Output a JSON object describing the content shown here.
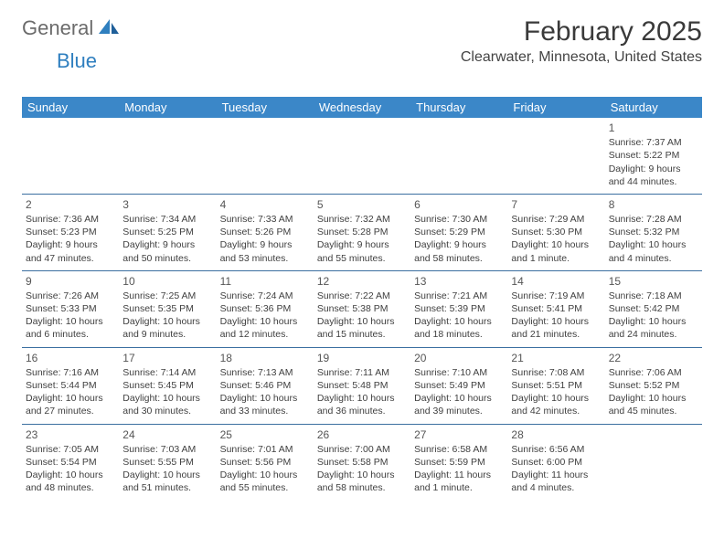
{
  "brand": {
    "text1": "General",
    "text2": "Blue"
  },
  "title": "February 2025",
  "location": "Clearwater, Minnesota, United States",
  "colors": {
    "header_bg": "#3b87c8",
    "header_text": "#ffffff",
    "row_border": "#3b6fa0",
    "brand_gray": "#6b6b6b",
    "brand_blue": "#2f7fbf"
  },
  "dayHeaders": [
    "Sunday",
    "Monday",
    "Tuesday",
    "Wednesday",
    "Thursday",
    "Friday",
    "Saturday"
  ],
  "weeks": [
    [
      null,
      null,
      null,
      null,
      null,
      null,
      {
        "n": "1",
        "sr": "7:37 AM",
        "ss": "5:22 PM",
        "dl": "9 hours and 44 minutes."
      }
    ],
    [
      {
        "n": "2",
        "sr": "7:36 AM",
        "ss": "5:23 PM",
        "dl": "9 hours and 47 minutes."
      },
      {
        "n": "3",
        "sr": "7:34 AM",
        "ss": "5:25 PM",
        "dl": "9 hours and 50 minutes."
      },
      {
        "n": "4",
        "sr": "7:33 AM",
        "ss": "5:26 PM",
        "dl": "9 hours and 53 minutes."
      },
      {
        "n": "5",
        "sr": "7:32 AM",
        "ss": "5:28 PM",
        "dl": "9 hours and 55 minutes."
      },
      {
        "n": "6",
        "sr": "7:30 AM",
        "ss": "5:29 PM",
        "dl": "9 hours and 58 minutes."
      },
      {
        "n": "7",
        "sr": "7:29 AM",
        "ss": "5:30 PM",
        "dl": "10 hours and 1 minute."
      },
      {
        "n": "8",
        "sr": "7:28 AM",
        "ss": "5:32 PM",
        "dl": "10 hours and 4 minutes."
      }
    ],
    [
      {
        "n": "9",
        "sr": "7:26 AM",
        "ss": "5:33 PM",
        "dl": "10 hours and 6 minutes."
      },
      {
        "n": "10",
        "sr": "7:25 AM",
        "ss": "5:35 PM",
        "dl": "10 hours and 9 minutes."
      },
      {
        "n": "11",
        "sr": "7:24 AM",
        "ss": "5:36 PM",
        "dl": "10 hours and 12 minutes."
      },
      {
        "n": "12",
        "sr": "7:22 AM",
        "ss": "5:38 PM",
        "dl": "10 hours and 15 minutes."
      },
      {
        "n": "13",
        "sr": "7:21 AM",
        "ss": "5:39 PM",
        "dl": "10 hours and 18 minutes."
      },
      {
        "n": "14",
        "sr": "7:19 AM",
        "ss": "5:41 PM",
        "dl": "10 hours and 21 minutes."
      },
      {
        "n": "15",
        "sr": "7:18 AM",
        "ss": "5:42 PM",
        "dl": "10 hours and 24 minutes."
      }
    ],
    [
      {
        "n": "16",
        "sr": "7:16 AM",
        "ss": "5:44 PM",
        "dl": "10 hours and 27 minutes."
      },
      {
        "n": "17",
        "sr": "7:14 AM",
        "ss": "5:45 PM",
        "dl": "10 hours and 30 minutes."
      },
      {
        "n": "18",
        "sr": "7:13 AM",
        "ss": "5:46 PM",
        "dl": "10 hours and 33 minutes."
      },
      {
        "n": "19",
        "sr": "7:11 AM",
        "ss": "5:48 PM",
        "dl": "10 hours and 36 minutes."
      },
      {
        "n": "20",
        "sr": "7:10 AM",
        "ss": "5:49 PM",
        "dl": "10 hours and 39 minutes."
      },
      {
        "n": "21",
        "sr": "7:08 AM",
        "ss": "5:51 PM",
        "dl": "10 hours and 42 minutes."
      },
      {
        "n": "22",
        "sr": "7:06 AM",
        "ss": "5:52 PM",
        "dl": "10 hours and 45 minutes."
      }
    ],
    [
      {
        "n": "23",
        "sr": "7:05 AM",
        "ss": "5:54 PM",
        "dl": "10 hours and 48 minutes."
      },
      {
        "n": "24",
        "sr": "7:03 AM",
        "ss": "5:55 PM",
        "dl": "10 hours and 51 minutes."
      },
      {
        "n": "25",
        "sr": "7:01 AM",
        "ss": "5:56 PM",
        "dl": "10 hours and 55 minutes."
      },
      {
        "n": "26",
        "sr": "7:00 AM",
        "ss": "5:58 PM",
        "dl": "10 hours and 58 minutes."
      },
      {
        "n": "27",
        "sr": "6:58 AM",
        "ss": "5:59 PM",
        "dl": "11 hours and 1 minute."
      },
      {
        "n": "28",
        "sr": "6:56 AM",
        "ss": "6:00 PM",
        "dl": "11 hours and 4 minutes."
      },
      null
    ]
  ],
  "labels": {
    "sunrise": "Sunrise:",
    "sunset": "Sunset:",
    "daylight": "Daylight:"
  }
}
